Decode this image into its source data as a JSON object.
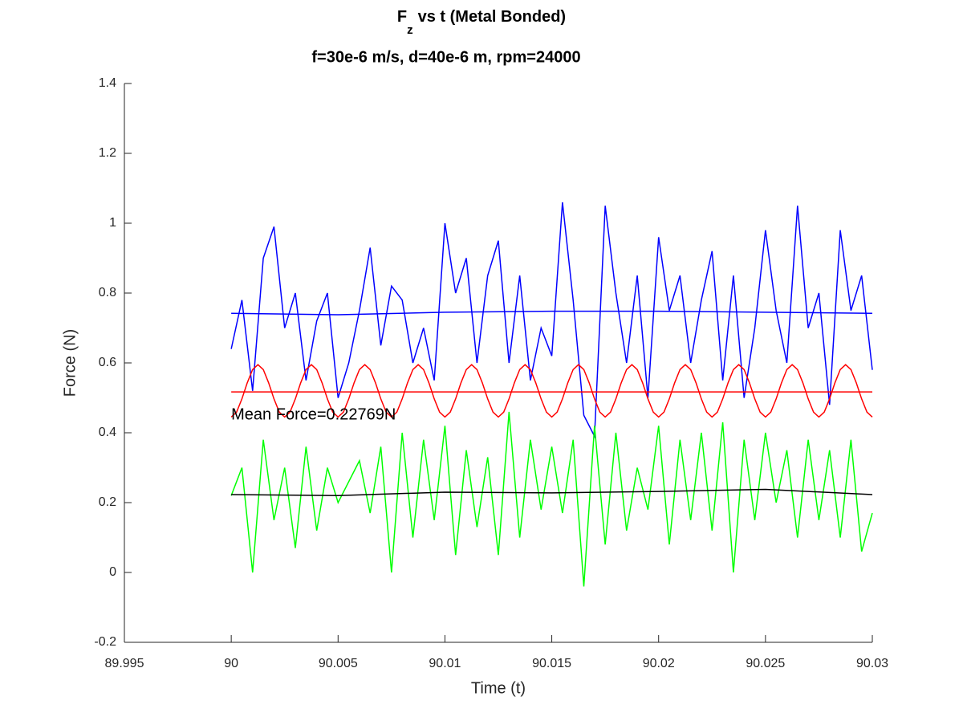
{
  "chart_data": {
    "type": "line",
    "title": {
      "base": "F",
      "subscript": "z",
      "text": "vs t (Metal Bonded)"
    },
    "subtitle": "f=30e-6 m/s, d=40e-6 m, rpm=24000",
    "x_label": "Time (t)",
    "y_label": "Force (N)",
    "annotation": {
      "text": "Mean Force=0.22769N",
      "x": 90,
      "y": 0.45
    },
    "xlim": [
      89.995,
      90.03
    ],
    "xticks": [
      89.995,
      90,
      90.005,
      90.01,
      90.015,
      90.02,
      90.025,
      90.03
    ],
    "ylim": [
      -0.2,
      1.4
    ],
    "yticks": [
      -0.2,
      0,
      0.2,
      0.4,
      0.6,
      0.8,
      1,
      1.2,
      1.4
    ],
    "grid": false,
    "series": [
      {
        "color": "#0000ff",
        "x": [
          90,
          90.0005,
          90.001,
          90.0015,
          90.002,
          90.0025,
          90.003,
          90.0035,
          90.004,
          90.0045,
          90.005,
          90.0055,
          90.006,
          90.0065,
          90.007,
          90.0075,
          90.008,
          90.0085,
          90.009,
          90.0095,
          90.01,
          90.0105,
          90.011,
          90.0115,
          90.012,
          90.0125,
          90.013,
          90.0135,
          90.014,
          90.0145,
          90.015,
          90.0155,
          90.016,
          90.0165,
          90.017,
          90.0175,
          90.018,
          90.0185,
          90.019,
          90.0195,
          90.02,
          90.0205,
          90.021,
          90.0215,
          90.022,
          90.0225,
          90.023,
          90.0235,
          90.024,
          90.0245,
          90.025,
          90.0255,
          90.026,
          90.0265,
          90.027,
          90.0275,
          90.028,
          90.0285,
          90.029,
          90.0295,
          90.03
        ],
        "values": [
          0.64,
          0.78,
          0.52,
          0.9,
          0.99,
          0.7,
          0.8,
          0.55,
          0.72,
          0.8,
          0.5,
          0.6,
          0.75,
          0.93,
          0.65,
          0.82,
          0.78,
          0.6,
          0.7,
          0.55,
          1.0,
          0.8,
          0.9,
          0.6,
          0.85,
          0.95,
          0.6,
          0.85,
          0.55,
          0.7,
          0.62,
          1.06,
          0.78,
          0.45,
          0.39,
          1.05,
          0.8,
          0.6,
          0.85,
          0.5,
          0.96,
          0.75,
          0.85,
          0.6,
          0.78,
          0.92,
          0.55,
          0.85,
          0.5,
          0.7,
          0.98,
          0.75,
          0.6,
          1.05,
          0.7,
          0.8,
          0.48,
          0.98,
          0.75,
          0.85,
          0.58
        ]
      },
      {
        "color": "#0000ff",
        "x": [
          90,
          90.005,
          90.01,
          90.015,
          90.02,
          90.025,
          90.03
        ],
        "values": [
          0.742,
          0.738,
          0.745,
          0.748,
          0.748,
          0.745,
          0.742
        ]
      },
      {
        "color": "#ff0000",
        "x": [
          90,
          90.00025,
          90.0005,
          90.00075,
          90.001,
          90.00125,
          90.0015,
          90.00175,
          90.002,
          90.00225,
          90.0025,
          90.00275,
          90.003,
          90.00325,
          90.0035,
          90.00375,
          90.004,
          90.00425,
          90.0045,
          90.00475,
          90.005,
          90.00525,
          90.0055,
          90.00575,
          90.006,
          90.00625,
          90.0065,
          90.00675,
          90.007,
          90.00725,
          90.0075,
          90.00775,
          90.008,
          90.00825,
          90.0085,
          90.00875,
          90.009,
          90.00925,
          90.0095,
          90.00975,
          90.01,
          90.01025,
          90.0105,
          90.01075,
          90.011,
          90.01125,
          90.0115,
          90.01175,
          90.012,
          90.01225,
          90.0125,
          90.01275,
          90.013,
          90.01325,
          90.0135,
          90.01375,
          90.014,
          90.01425,
          90.0145,
          90.01475,
          90.015,
          90.01525,
          90.0155,
          90.01575,
          90.016,
          90.01625,
          90.0165,
          90.01675,
          90.017,
          90.01725,
          90.0175,
          90.01775,
          90.018,
          90.01825,
          90.0185,
          90.01875,
          90.019,
          90.01925,
          90.0195,
          90.01975,
          90.02,
          90.02025,
          90.0205,
          90.02075,
          90.021,
          90.02125,
          90.0215,
          90.02175,
          90.022,
          90.02225,
          90.0225,
          90.02275,
          90.023,
          90.02325,
          90.0235,
          90.02375,
          90.024,
          90.02425,
          90.0245,
          90.02475,
          90.025,
          90.02525,
          90.0255,
          90.02575,
          90.026,
          90.02625,
          90.0265,
          90.02675,
          90.027,
          90.02725,
          90.0275,
          90.02775,
          90.028,
          90.02825,
          90.0285,
          90.02875,
          90.029,
          90.02925,
          90.0295,
          90.02975,
          90.03
        ],
        "values": [
          0.445,
          0.459,
          0.497,
          0.543,
          0.581,
          0.595,
          0.581,
          0.543,
          0.497,
          0.459,
          0.445,
          0.459,
          0.497,
          0.543,
          0.581,
          0.595,
          0.581,
          0.543,
          0.497,
          0.459,
          0.445,
          0.459,
          0.497,
          0.543,
          0.581,
          0.595,
          0.581,
          0.543,
          0.497,
          0.459,
          0.445,
          0.459,
          0.497,
          0.543,
          0.581,
          0.595,
          0.581,
          0.543,
          0.497,
          0.459,
          0.445,
          0.459,
          0.497,
          0.543,
          0.581,
          0.595,
          0.581,
          0.543,
          0.497,
          0.459,
          0.445,
          0.459,
          0.497,
          0.543,
          0.581,
          0.595,
          0.581,
          0.543,
          0.497,
          0.459,
          0.445,
          0.459,
          0.497,
          0.543,
          0.581,
          0.595,
          0.581,
          0.543,
          0.497,
          0.459,
          0.445,
          0.459,
          0.497,
          0.543,
          0.581,
          0.595,
          0.581,
          0.543,
          0.497,
          0.459,
          0.445,
          0.459,
          0.497,
          0.543,
          0.581,
          0.595,
          0.581,
          0.543,
          0.497,
          0.459,
          0.445,
          0.459,
          0.497,
          0.543,
          0.581,
          0.595,
          0.581,
          0.543,
          0.497,
          0.459,
          0.445,
          0.459,
          0.497,
          0.543,
          0.581,
          0.595,
          0.581,
          0.543,
          0.497,
          0.459,
          0.445,
          0.459,
          0.497,
          0.543,
          0.581,
          0.595,
          0.581,
          0.543,
          0.497,
          0.459,
          0.445
        ]
      },
      {
        "color": "#ff0000",
        "x": [
          90,
          90.03
        ],
        "values": [
          0.517,
          0.517
        ]
      },
      {
        "color": "#00ff00",
        "x": [
          90,
          90.0005,
          90.001,
          90.0015,
          90.002,
          90.0025,
          90.003,
          90.0035,
          90.004,
          90.0045,
          90.005,
          90.0055,
          90.006,
          90.0065,
          90.007,
          90.0075,
          90.008,
          90.0085,
          90.009,
          90.0095,
          90.01,
          90.0105,
          90.011,
          90.0115,
          90.012,
          90.0125,
          90.013,
          90.0135,
          90.014,
          90.0145,
          90.015,
          90.0155,
          90.016,
          90.0165,
          90.017,
          90.0175,
          90.018,
          90.0185,
          90.019,
          90.0195,
          90.02,
          90.0205,
          90.021,
          90.0215,
          90.022,
          90.0225,
          90.023,
          90.0235,
          90.024,
          90.0245,
          90.025,
          90.0255,
          90.026,
          90.0265,
          90.027,
          90.0275,
          90.028,
          90.0285,
          90.029,
          90.0295,
          90.03
        ],
        "values": [
          0.22,
          0.3,
          0.0,
          0.38,
          0.15,
          0.3,
          0.07,
          0.36,
          0.12,
          0.3,
          0.2,
          0.26,
          0.32,
          0.17,
          0.36,
          0.0,
          0.4,
          0.1,
          0.38,
          0.15,
          0.42,
          0.05,
          0.35,
          0.13,
          0.33,
          0.05,
          0.46,
          0.1,
          0.38,
          0.18,
          0.36,
          0.17,
          0.38,
          -0.04,
          0.42,
          0.08,
          0.4,
          0.12,
          0.3,
          0.18,
          0.42,
          0.08,
          0.38,
          0.15,
          0.4,
          0.12,
          0.43,
          0.0,
          0.38,
          0.15,
          0.4,
          0.2,
          0.35,
          0.1,
          0.38,
          0.15,
          0.35,
          0.1,
          0.38,
          0.06,
          0.17
        ]
      },
      {
        "color": "#000000",
        "x": [
          90,
          90.005,
          90.01,
          90.015,
          90.02,
          90.025,
          90.03
        ],
        "values": [
          0.223,
          0.22,
          0.23,
          0.228,
          0.232,
          0.238,
          0.223
        ]
      }
    ]
  }
}
